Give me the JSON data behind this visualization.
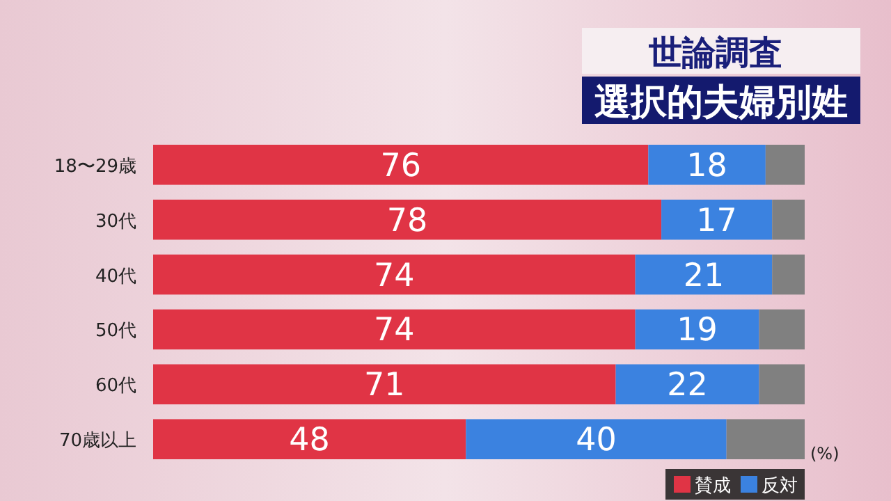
{
  "chart_data": {
    "type": "bar",
    "orientation": "horizontal",
    "stacked": true,
    "title": "世論調査",
    "subtitle": "選択的夫婦別姓",
    "categories": [
      "18〜29歳",
      "30代",
      "40代",
      "50代",
      "60代",
      "70歳以上"
    ],
    "series": [
      {
        "name": "賛成",
        "color": "#e03445",
        "values": [
          76,
          78,
          74,
          74,
          71,
          48
        ],
        "value_labels": [
          "76",
          "78",
          "74",
          "74",
          "71",
          "48"
        ]
      },
      {
        "name": "反対",
        "color": "#3b82e0",
        "values": [
          18,
          17,
          21,
          19,
          22,
          40
        ],
        "value_labels": [
          "18",
          "17",
          "21",
          "19",
          "22",
          "40"
        ]
      },
      {
        "color": "#808080",
        "values": [
          6,
          5,
          5,
          7,
          7,
          12
        ],
        "value_labels": [
          null,
          null,
          null,
          null,
          null,
          null
        ]
      }
    ],
    "xlim": [
      0,
      100
    ],
    "tick_labels": "y",
    "legend": "bottom right",
    "annotations": [
      "(%)"
    ]
  }
}
